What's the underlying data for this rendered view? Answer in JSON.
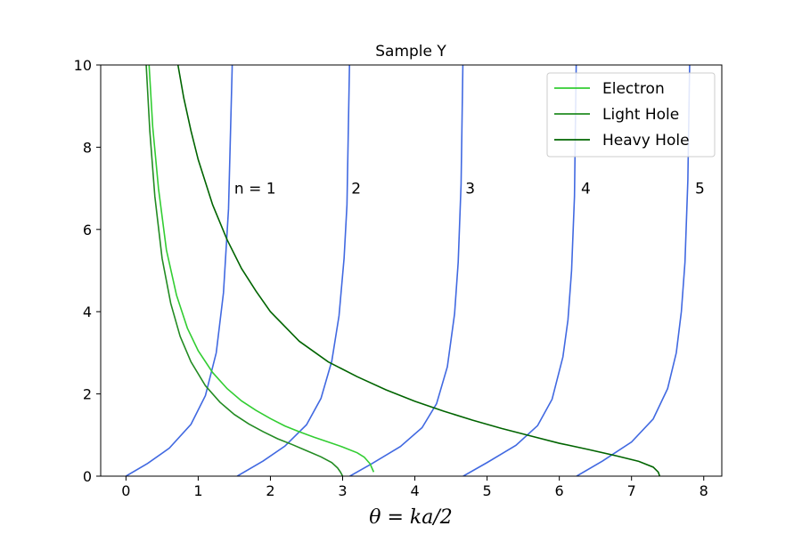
{
  "chart_data": {
    "type": "line",
    "title": "Sample Y",
    "xlabel": "θ = ka/2",
    "ylabel": "",
    "xlim": [
      -0.35,
      8.25
    ],
    "ylim": [
      0,
      10
    ],
    "xticks": [
      "0",
      "1",
      "2",
      "3",
      "4",
      "5",
      "6",
      "7",
      "8"
    ],
    "yticks": [
      "0",
      "2",
      "4",
      "6",
      "8",
      "10"
    ],
    "legend_position": "top-right",
    "grid": false,
    "colors": {
      "tan_branches": "#4169e1",
      "electron": "#32cd32",
      "light_hole": "#228b22",
      "heavy_hole": "#006400"
    },
    "tan_branches": [
      {
        "label": "n = 1",
        "x": [
          0,
          0.3,
          0.6,
          0.9,
          1.1,
          1.25,
          1.35,
          1.42,
          1.47,
          1.5,
          1.54
        ],
        "y": [
          0,
          0.31,
          0.68,
          1.26,
          1.96,
          3.0,
          4.46,
          6.5,
          9.9,
          14.1,
          30
        ]
      },
      {
        "label": "2",
        "x": [
          1.54,
          1.9,
          2.2,
          2.5,
          2.7,
          2.85,
          2.95,
          3.02,
          3.06,
          3.1
        ],
        "y": [
          0,
          0.37,
          0.73,
          1.25,
          1.89,
          2.8,
          3.9,
          5.3,
          6.6,
          10.5
        ]
      },
      {
        "label": "3",
        "x": [
          3.1,
          3.4,
          3.8,
          4.1,
          4.3,
          4.45,
          4.55,
          4.6,
          4.64,
          4.67
        ],
        "y": [
          0,
          0.3,
          0.72,
          1.18,
          1.76,
          2.66,
          3.95,
          5.2,
          7.1,
          10.6
        ]
      },
      {
        "label": "4",
        "x": [
          4.67,
          5.0,
          5.4,
          5.7,
          5.9,
          6.05,
          6.12,
          6.17,
          6.21,
          6.24
        ],
        "y": [
          0,
          0.33,
          0.75,
          1.23,
          1.87,
          2.9,
          3.8,
          5.0,
          6.8,
          10.8
        ]
      },
      {
        "label": "5",
        "x": [
          6.24,
          6.6,
          7.0,
          7.3,
          7.5,
          7.62,
          7.69,
          7.74,
          7.78,
          7.81
        ],
        "y": [
          0,
          0.37,
          0.83,
          1.39,
          2.13,
          3.0,
          4.0,
          5.2,
          7.2,
          10.6
        ]
      }
    ],
    "annotations": [
      {
        "text": "n = 1",
        "x": 1.5,
        "y": 7.0
      },
      {
        "text": "2",
        "x": 3.12,
        "y": 7.0
      },
      {
        "text": "3",
        "x": 4.7,
        "y": 7.0
      },
      {
        "text": "4",
        "x": 6.3,
        "y": 7.0
      },
      {
        "text": "5",
        "x": 7.88,
        "y": 7.0
      }
    ],
    "series": [
      {
        "name": "Electron",
        "x": [
          0.32,
          0.37,
          0.45,
          0.56,
          0.7,
          0.85,
          1.0,
          1.2,
          1.4,
          1.6,
          1.8,
          2.0,
          2.2,
          2.4,
          2.6,
          2.8,
          3.0,
          3.2,
          3.3,
          3.38,
          3.43
        ],
        "y": [
          10.0,
          8.5,
          7.0,
          5.5,
          4.4,
          3.6,
          3.05,
          2.52,
          2.13,
          1.83,
          1.6,
          1.4,
          1.22,
          1.08,
          0.95,
          0.83,
          0.71,
          0.57,
          0.46,
          0.3,
          0.1
        ]
      },
      {
        "name": "Light Hole",
        "x": [
          0.28,
          0.33,
          0.4,
          0.5,
          0.62,
          0.75,
          0.9,
          1.1,
          1.3,
          1.5,
          1.7,
          1.9,
          2.1,
          2.3,
          2.5,
          2.7,
          2.85,
          2.93,
          2.97,
          3.0
        ],
        "y": [
          10.0,
          8.4,
          6.8,
          5.3,
          4.2,
          3.4,
          2.78,
          2.2,
          1.8,
          1.5,
          1.27,
          1.08,
          0.91,
          0.77,
          0.62,
          0.47,
          0.33,
          0.2,
          0.1,
          0.0
        ]
      },
      {
        "name": "Heavy Hole",
        "x": [
          0.72,
          0.8,
          0.9,
          1.0,
          1.2,
          1.4,
          1.6,
          1.8,
          2.0,
          2.4,
          2.8,
          3.2,
          3.6,
          4.0,
          4.4,
          4.8,
          5.2,
          5.6,
          6.0,
          6.4,
          6.8,
          7.1,
          7.3,
          7.37,
          7.39
        ],
        "y": [
          10.0,
          9.2,
          8.4,
          7.7,
          6.6,
          5.75,
          5.05,
          4.5,
          4.0,
          3.28,
          2.78,
          2.42,
          2.1,
          1.82,
          1.58,
          1.36,
          1.16,
          0.98,
          0.8,
          0.65,
          0.49,
          0.36,
          0.22,
          0.1,
          0.0
        ]
      }
    ]
  }
}
